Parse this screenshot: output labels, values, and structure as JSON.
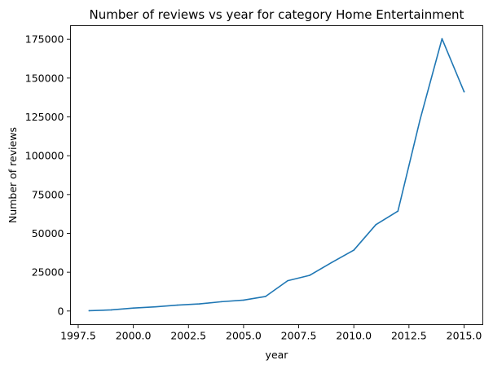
{
  "chart_data": {
    "type": "line",
    "title": "Number of reviews vs year for category Home Entertainment",
    "xlabel": "year",
    "ylabel": "Number of reviews",
    "xlim": [
      1997.15,
      2015.85
    ],
    "ylim": [
      -8750,
      183750
    ],
    "x_ticks": [
      1997.5,
      2000.0,
      2002.5,
      2005.0,
      2007.5,
      2010.0,
      2012.5,
      2015.0
    ],
    "x_tick_labels": [
      "1997.5",
      "2000.0",
      "2002.5",
      "2005.0",
      "2007.5",
      "2010.0",
      "2012.5",
      "2015.0"
    ],
    "y_ticks": [
      0,
      25000,
      50000,
      75000,
      100000,
      125000,
      150000,
      175000
    ],
    "y_tick_labels": [
      "0",
      "25000",
      "50000",
      "75000",
      "100000",
      "125000",
      "150000",
      "175000"
    ],
    "grid": false,
    "series": [
      {
        "color": "#1f77b4",
        "x": [
          1998,
          1999,
          2000,
          2001,
          2002,
          2003,
          2004,
          2005,
          2006,
          2007,
          2008,
          2009,
          2010,
          2011,
          2012,
          2013,
          2014,
          2015
        ],
        "y": [
          200,
          700,
          1900,
          2700,
          3800,
          4600,
          6000,
          7000,
          9400,
          19500,
          23000,
          31300,
          39200,
          55600,
          64300,
          123000,
          175300,
          141200
        ]
      }
    ]
  }
}
